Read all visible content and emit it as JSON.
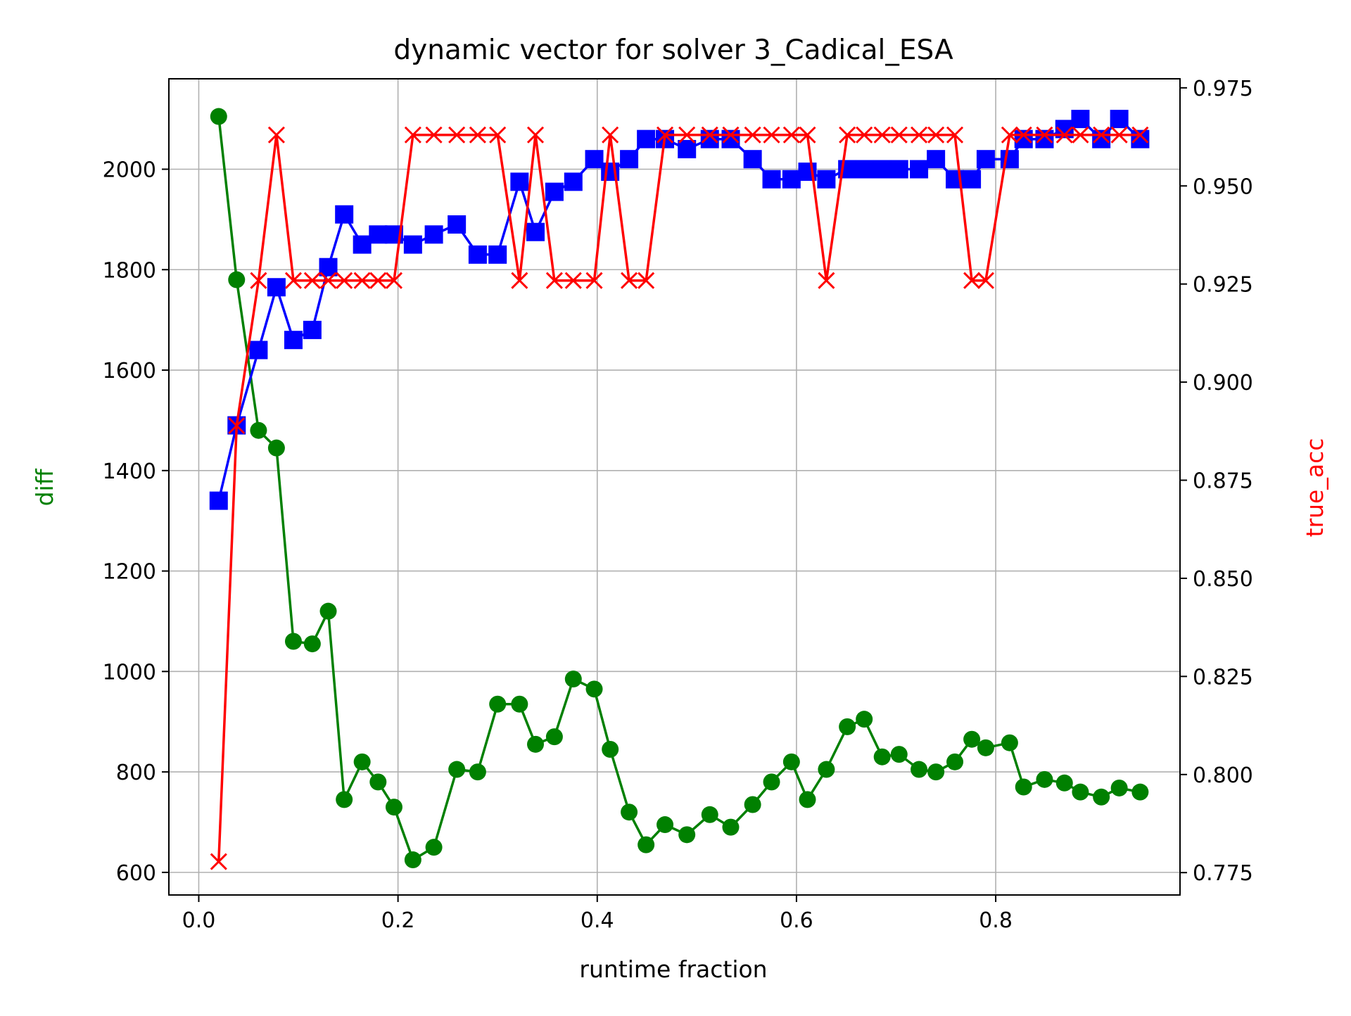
{
  "chart_data": {
    "type": "line",
    "title": "dynamic vector for solver 3_Cadical_ESA",
    "xlabel": "runtime fraction",
    "ylabel_left": "diff",
    "ylabel_right": "true_acc",
    "xlim": [
      -0.03,
      0.985
    ],
    "ylim_left": [
      555,
      2180
    ],
    "ylim_right": [
      0.7693,
      0.9773
    ],
    "x_ticks": [
      0.0,
      0.2,
      0.4,
      0.6,
      0.8
    ],
    "x_tick_labels": [
      "0.0",
      "0.2",
      "0.4",
      "0.6",
      "0.8"
    ],
    "y_left_ticks": [
      600,
      800,
      1000,
      1200,
      1400,
      1600,
      1800,
      2000
    ],
    "y_left_tick_labels": [
      "600",
      "800",
      "1000",
      "1200",
      "1400",
      "1600",
      "1800",
      "2000"
    ],
    "y_right_ticks": [
      0.775,
      0.8,
      0.825,
      0.85,
      0.875,
      0.9,
      0.925,
      0.95,
      0.975
    ],
    "y_right_tick_labels": [
      "0.775",
      "0.800",
      "0.825",
      "0.850",
      "0.875",
      "0.900",
      "0.925",
      "0.950",
      "0.975"
    ],
    "grid": true,
    "colors": {
      "diff": "#008000",
      "blue_series": "#0000ff",
      "true_acc": "#ff0000",
      "left_label": "#008000",
      "right_label": "#ff0000"
    },
    "x": [
      0.02,
      0.038,
      0.06,
      0.078,
      0.095,
      0.114,
      0.13,
      0.146,
      0.164,
      0.18,
      0.196,
      0.215,
      0.236,
      0.259,
      0.28,
      0.3,
      0.322,
      0.338,
      0.357,
      0.376,
      0.397,
      0.413,
      0.432,
      0.449,
      0.468,
      0.49,
      0.513,
      0.534,
      0.556,
      0.575,
      0.595,
      0.611,
      0.63,
      0.651,
      0.668,
      0.686,
      0.703,
      0.723,
      0.74,
      0.759,
      0.776,
      0.79,
      0.814,
      0.828,
      0.849,
      0.869,
      0.885,
      0.906,
      0.924,
      0.945
    ],
    "series": [
      {
        "name": "diff",
        "axis": "left",
        "marker": "circle",
        "values": [
          2105,
          1780,
          1480,
          1445,
          1060,
          1055,
          1120,
          745,
          820,
          780,
          730,
          625,
          650,
          805,
          800,
          935,
          935,
          855,
          870,
          985,
          965,
          845,
          720,
          655,
          695,
          675,
          715,
          690,
          735,
          780,
          820,
          745,
          805,
          890,
          905,
          830,
          835,
          805,
          800,
          820,
          865,
          848,
          858,
          770,
          785,
          778,
          760,
          750,
          768,
          760
        ]
      },
      {
        "name": "",
        "axis": "left",
        "marker": "square",
        "values": [
          1340,
          1490,
          1640,
          1765,
          1660,
          1680,
          1805,
          1910,
          1850,
          1870,
          1870,
          1850,
          1870,
          1890,
          1830,
          1830,
          1975,
          1875,
          1955,
          1975,
          2020,
          1995,
          2020,
          2060,
          2060,
          2040,
          2060,
          2060,
          2020,
          1980,
          1980,
          1995,
          1980,
          2000,
          2000,
          2000,
          2000,
          2000,
          2020,
          1980,
          1980,
          2020,
          2020,
          2060,
          2060,
          2080,
          2100,
          2060,
          2100,
          2060
        ]
      },
      {
        "name": "true_acc",
        "axis": "right",
        "marker": "x",
        "values": [
          0.7778,
          0.8889,
          0.9259,
          0.963,
          0.9259,
          0.9259,
          0.9259,
          0.9259,
          0.9259,
          0.9259,
          0.9259,
          0.963,
          0.963,
          0.963,
          0.963,
          0.963,
          0.9259,
          0.963,
          0.9259,
          0.9259,
          0.9259,
          0.963,
          0.9259,
          0.9259,
          0.963,
          0.963,
          0.963,
          0.963,
          0.963,
          0.963,
          0.963,
          0.963,
          0.9259,
          0.963,
          0.963,
          0.963,
          0.963,
          0.963,
          0.963,
          0.963,
          0.9259,
          0.9259,
          0.963,
          0.963,
          0.963,
          0.963,
          0.963,
          0.963,
          0.963,
          0.963
        ]
      }
    ]
  }
}
